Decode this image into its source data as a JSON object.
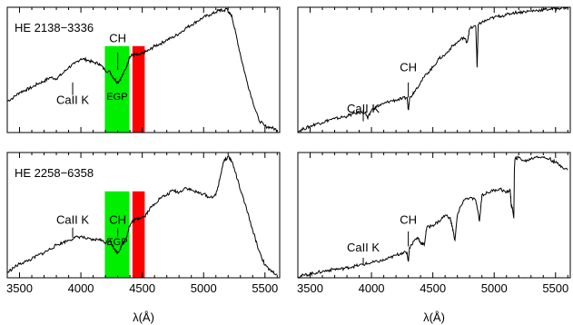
{
  "figure": {
    "xlabel": "λ(Å)",
    "xlim": [
      3400,
      5620
    ],
    "xticks": [
      3500,
      4000,
      4500,
      5000,
      5500
    ],
    "colors": {
      "egp_band": "#00ee00",
      "red_band": "#ff0000",
      "line": "#000000"
    }
  },
  "chart_data": [
    {
      "type": "line",
      "panel": "top-left",
      "star": "HE 2138−3336",
      "xlabel": "",
      "ylim": [
        0,
        1
      ],
      "bands": [
        {
          "x_start": 4195,
          "x_end": 4395,
          "color": "#00ee00",
          "label": "EGP"
        },
        {
          "x_start": 4420,
          "x_end": 4520,
          "color": "#ff0000"
        }
      ],
      "annotations": [
        {
          "text": "CH",
          "x": 4300,
          "y": 0.72,
          "tick_y0": 0.5,
          "tick_y1": 0.64
        },
        {
          "text": "CaII K",
          "x": 3933,
          "y": 0.23,
          "tick_y0": 0.3,
          "tick_y1": 0.4
        }
      ],
      "series": [
        {
          "x": [
            3400,
            3450,
            3500,
            3550,
            3600,
            3650,
            3700,
            3750,
            3800,
            3850,
            3900,
            3950,
            4000,
            4050,
            4100,
            4150,
            4195,
            4240,
            4270,
            4300,
            4330,
            4370,
            4395,
            4420,
            4450,
            4480,
            4520,
            4560,
            4600,
            4650,
            4700,
            4750,
            4800,
            4850,
            4900,
            4950,
            5000,
            5050,
            5100,
            5130,
            5160,
            5190,
            5210,
            5230,
            5260,
            5300,
            5350,
            5400,
            5450,
            5500,
            5550,
            5600
          ],
          "y": [
            0.25,
            0.28,
            0.32,
            0.34,
            0.36,
            0.39,
            0.41,
            0.44,
            0.43,
            0.47,
            0.52,
            0.55,
            0.59,
            0.58,
            0.56,
            0.55,
            0.5,
            0.48,
            0.43,
            0.4,
            0.44,
            0.52,
            0.6,
            0.62,
            0.62,
            0.62,
            0.64,
            0.66,
            0.69,
            0.71,
            0.74,
            0.76,
            0.79,
            0.83,
            0.86,
            0.89,
            0.92,
            0.94,
            0.96,
            0.98,
            0.97,
            0.99,
            0.95,
            0.93,
            0.8,
            0.62,
            0.42,
            0.25,
            0.1,
            0.05,
            0.04,
            0.02
          ]
        }
      ]
    },
    {
      "type": "line",
      "panel": "top-right",
      "xlabel": "",
      "ylim": [
        0,
        1
      ],
      "annotations": [
        {
          "text": "CH",
          "x": 4300,
          "y": 0.49,
          "tick_y0": 0.28,
          "tick_y1": 0.4
        },
        {
          "text": "CaII K",
          "x": 3933,
          "y": 0.16,
          "tick_y0": 0.09,
          "tick_y1": 0.18
        }
      ],
      "series": [
        {
          "x": [
            3400,
            3450,
            3500,
            3550,
            3600,
            3650,
            3700,
            3750,
            3800,
            3850,
            3900,
            3950,
            3970,
            4000,
            4050,
            4100,
            4150,
            4200,
            4250,
            4290,
            4300,
            4310,
            4350,
            4400,
            4450,
            4500,
            4550,
            4600,
            4650,
            4700,
            4750,
            4780,
            4800,
            4850,
            4861,
            4870,
            4900,
            4950,
            5000,
            5050,
            5100,
            5150,
            5200,
            5250,
            5300,
            5350,
            5400,
            5450,
            5500,
            5550,
            5600
          ],
          "y": [
            0.01,
            0.03,
            0.05,
            0.07,
            0.08,
            0.1,
            0.11,
            0.12,
            0.13,
            0.15,
            0.16,
            0.16,
            0.11,
            0.18,
            0.21,
            0.23,
            0.25,
            0.26,
            0.27,
            0.28,
            0.18,
            0.27,
            0.33,
            0.4,
            0.47,
            0.52,
            0.59,
            0.62,
            0.68,
            0.72,
            0.76,
            0.72,
            0.83,
            0.85,
            0.52,
            0.86,
            0.88,
            0.9,
            0.92,
            0.93,
            0.94,
            0.955,
            0.96,
            0.965,
            0.97,
            0.975,
            0.98,
            0.985,
            0.99,
            0.995,
            1.0
          ]
        }
      ]
    },
    {
      "type": "line",
      "panel": "bottom-left",
      "star": "HE 2258−6358",
      "xlabel": "λ(Å)",
      "ylim": [
        0,
        1
      ],
      "bands": [
        {
          "x_start": 4195,
          "x_end": 4395,
          "color": "#00ee00",
          "label": "EGP"
        },
        {
          "x_start": 4420,
          "x_end": 4520,
          "color": "#ff0000"
        }
      ],
      "annotations": [
        {
          "text": "CH",
          "x": 4300,
          "y": 0.43,
          "tick_y0": 0.33,
          "tick_y1": 0.4
        },
        {
          "text": "CaII K",
          "x": 3933,
          "y": 0.43,
          "tick_y0": 0.32,
          "tick_y1": 0.4
        }
      ],
      "series": [
        {
          "x": [
            3400,
            3450,
            3500,
            3550,
            3600,
            3650,
            3700,
            3750,
            3800,
            3850,
            3900,
            3950,
            4000,
            4050,
            4100,
            4150,
            4195,
            4240,
            4270,
            4300,
            4330,
            4370,
            4395,
            4420,
            4450,
            4480,
            4520,
            4560,
            4600,
            4650,
            4700,
            4750,
            4800,
            4850,
            4900,
            4950,
            5000,
            5050,
            5100,
            5130,
            5160,
            5200,
            5230,
            5260,
            5300,
            5350,
            5400,
            5450,
            5500,
            5550,
            5600
          ],
          "y": [
            0.04,
            0.08,
            0.11,
            0.13,
            0.15,
            0.18,
            0.2,
            0.23,
            0.26,
            0.28,
            0.3,
            0.32,
            0.33,
            0.31,
            0.3,
            0.31,
            0.28,
            0.3,
            0.23,
            0.2,
            0.25,
            0.32,
            0.41,
            0.45,
            0.47,
            0.48,
            0.49,
            0.55,
            0.59,
            0.64,
            0.66,
            0.7,
            0.68,
            0.72,
            0.7,
            0.68,
            0.67,
            0.64,
            0.66,
            0.78,
            0.92,
            0.97,
            0.93,
            0.84,
            0.7,
            0.55,
            0.38,
            0.22,
            0.1,
            0.05,
            0.03
          ]
        }
      ]
    },
    {
      "type": "line",
      "panel": "bottom-right",
      "xlabel": "λ(Å)",
      "ylim": [
        0,
        1
      ],
      "annotations": [
        {
          "text": "CH",
          "x": 4300,
          "y": 0.43,
          "tick_y0": 0.25,
          "tick_y1": 0.37
        },
        {
          "text": "CaII K",
          "x": 3933,
          "y": 0.21,
          "tick_y0": 0.1,
          "tick_y1": 0.16
        }
      ],
      "series": [
        {
          "x": [
            3400,
            3450,
            3500,
            3550,
            3600,
            3650,
            3700,
            3750,
            3800,
            3850,
            3900,
            3950,
            4000,
            4050,
            4100,
            4150,
            4200,
            4250,
            4290,
            4300,
            4310,
            4350,
            4380,
            4400,
            4430,
            4450,
            4500,
            4550,
            4600,
            4640,
            4660,
            4680,
            4700,
            4750,
            4800,
            4850,
            4880,
            4900,
            4950,
            5000,
            5050,
            5100,
            5130,
            5140,
            5150,
            5160,
            5165,
            5170,
            5200,
            5250,
            5300,
            5350,
            5400,
            5450,
            5500,
            5550,
            5600
          ],
          "y": [
            0.01,
            0.02,
            0.03,
            0.04,
            0.05,
            0.06,
            0.07,
            0.07,
            0.08,
            0.09,
            0.1,
            0.11,
            0.12,
            0.13,
            0.14,
            0.16,
            0.18,
            0.2,
            0.2,
            0.13,
            0.24,
            0.3,
            0.32,
            0.28,
            0.26,
            0.4,
            0.42,
            0.45,
            0.5,
            0.48,
            0.4,
            0.3,
            0.5,
            0.62,
            0.64,
            0.62,
            0.45,
            0.66,
            0.68,
            0.7,
            0.71,
            0.68,
            0.7,
            0.57,
            0.55,
            0.48,
            0.88,
            0.95,
            0.96,
            0.93,
            0.95,
            0.97,
            0.96,
            0.95,
            0.92,
            0.89,
            0.86
          ]
        }
      ]
    }
  ]
}
